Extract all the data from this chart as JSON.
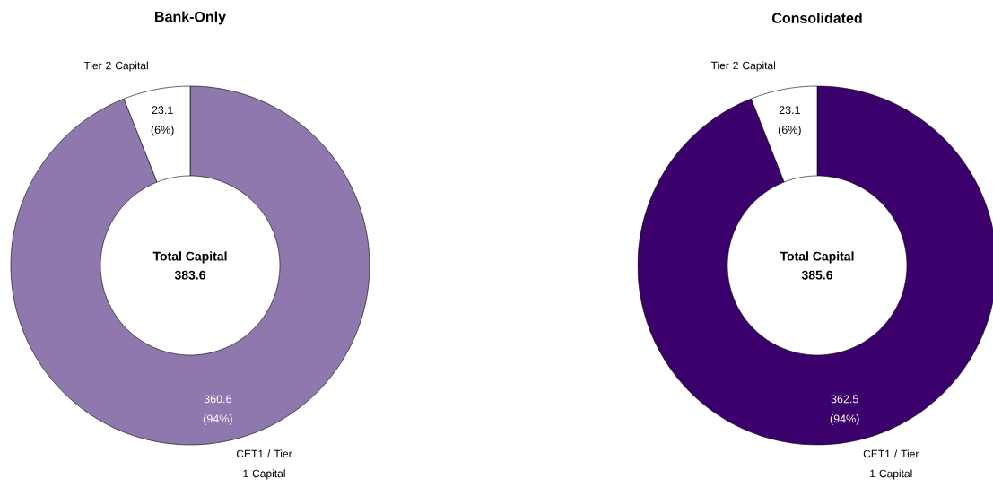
{
  "chart_data": [
    {
      "type": "donut",
      "title": "Bank-Only",
      "categories": [
        "CET1 / Tier 1 Capital",
        "Tier 2 Capital"
      ],
      "values": [
        360.6,
        23.1
      ],
      "colors": [
        "#8f78ae",
        "#ffffff"
      ],
      "value_labels": [
        "360.6 (94%)",
        "23.1 (6%)"
      ],
      "annotations": [
        "Total Capital",
        "383.6"
      ]
    },
    {
      "type": "donut",
      "title": "Consolidated",
      "categories": [
        "CET1 / Tier 1 Capital",
        "Tier 2 Capital"
      ],
      "values": [
        362.5,
        23.1
      ],
      "colors": [
        "#3b006b",
        "#ffffff"
      ],
      "value_labels": [
        "362.5 (94%)",
        "23.1 (6%)"
      ],
      "annotations": [
        "Total Capital",
        "385.6"
      ]
    }
  ]
}
